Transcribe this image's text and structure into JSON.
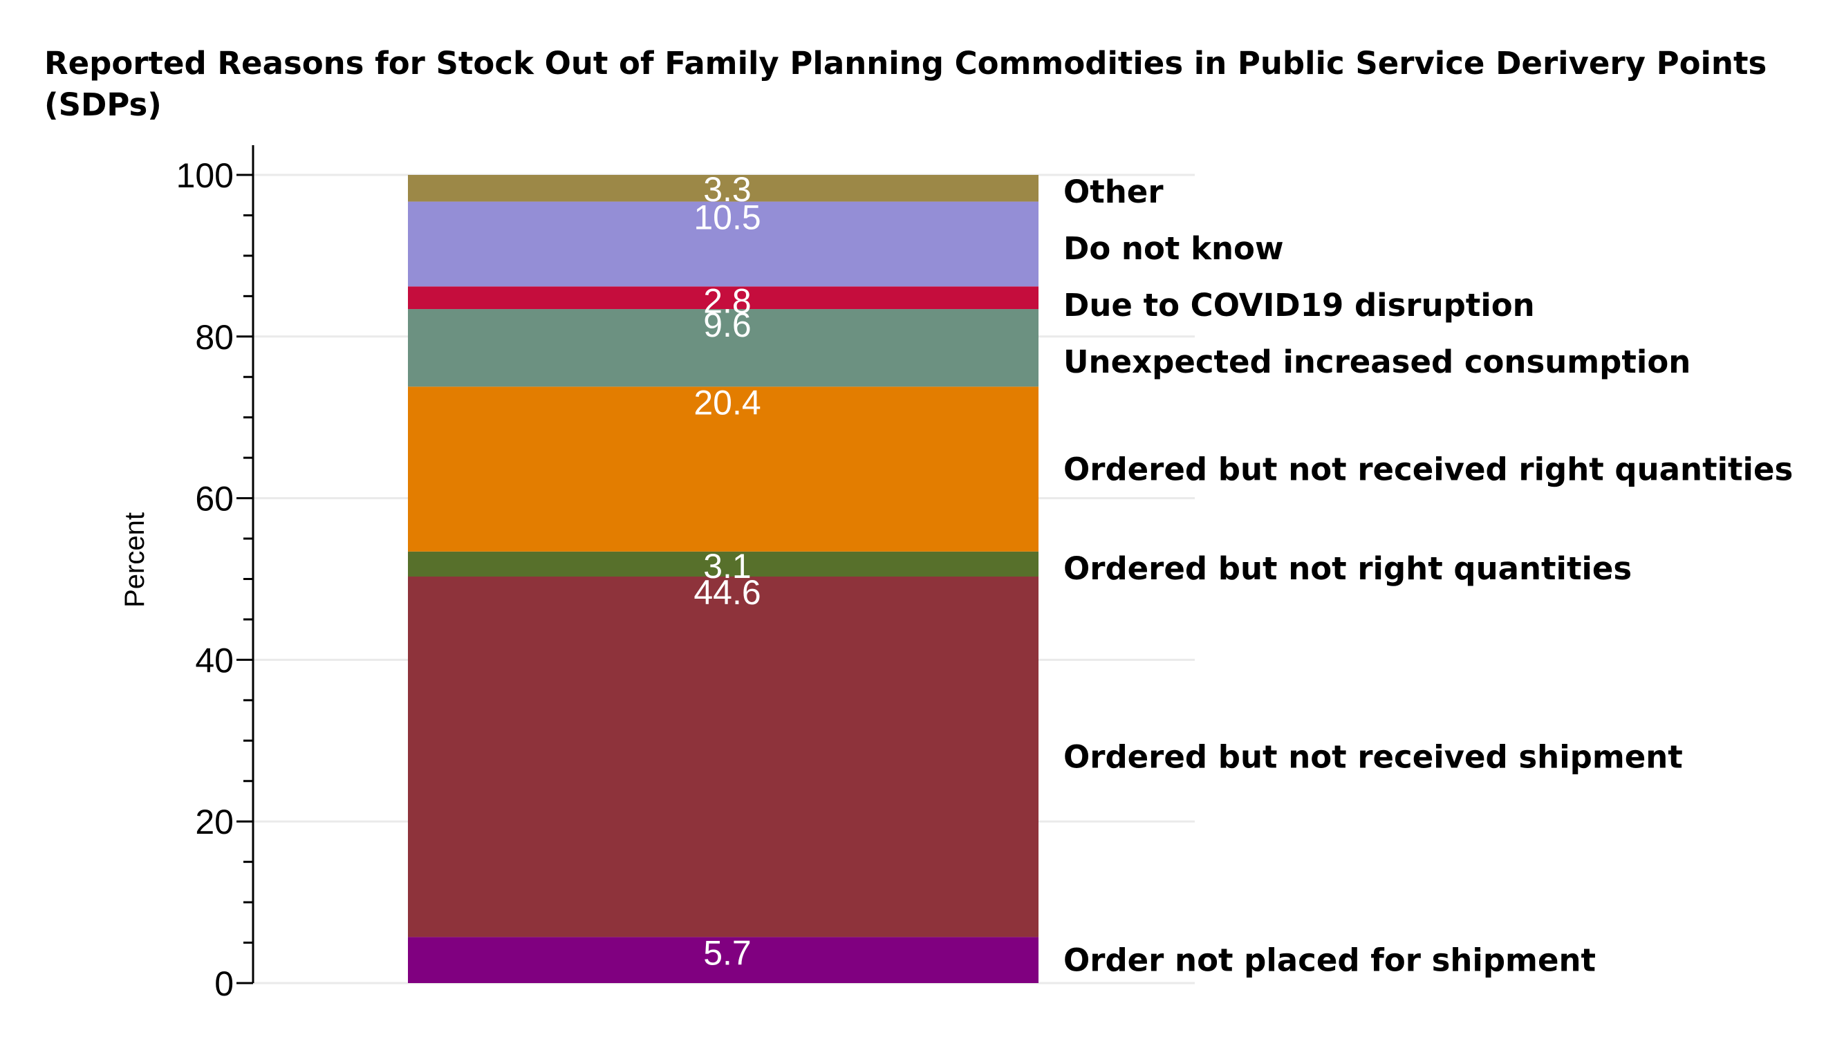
{
  "chart_data": {
    "type": "bar",
    "stacked": true,
    "title": "Reported Reasons for Stock Out of Family Planning Commodities in Public Service Derivery Points (SDPs)",
    "xlabel": "",
    "ylabel": "Percent",
    "ylim": [
      0,
      100
    ],
    "yticks": [
      0,
      20,
      40,
      60,
      80,
      100
    ],
    "grid": true,
    "legend": "labels at right of bar",
    "categories": [
      ""
    ],
    "series": [
      {
        "name": "Order not placed for shipment",
        "values": [
          5.7
        ],
        "label": "5.7",
        "color": "#800080"
      },
      {
        "name": "Ordered but not received shipment",
        "values": [
          44.6
        ],
        "label": "44.6",
        "color": "#8e333b"
      },
      {
        "name": "Ordered but not right quantities",
        "values": [
          3.1
        ],
        "label": "3.1",
        "color": "#57702b"
      },
      {
        "name": "Ordered but not received right quantities",
        "values": [
          20.4
        ],
        "label": "20.4",
        "color": "#e37d00"
      },
      {
        "name": "Unexpected increased consumption",
        "values": [
          9.6
        ],
        "label": "9.6",
        "color": "#6c9181"
      },
      {
        "name": "Due to COVID19 disruption",
        "values": [
          2.8
        ],
        "label": "2.8",
        "color": "#c50d3d"
      },
      {
        "name": "Do not know",
        "values": [
          10.5
        ],
        "label": "10.5",
        "color": "#948ed6"
      },
      {
        "name": "Other",
        "values": [
          3.3
        ],
        "label": "3.3",
        "color": "#9c8847"
      }
    ]
  }
}
